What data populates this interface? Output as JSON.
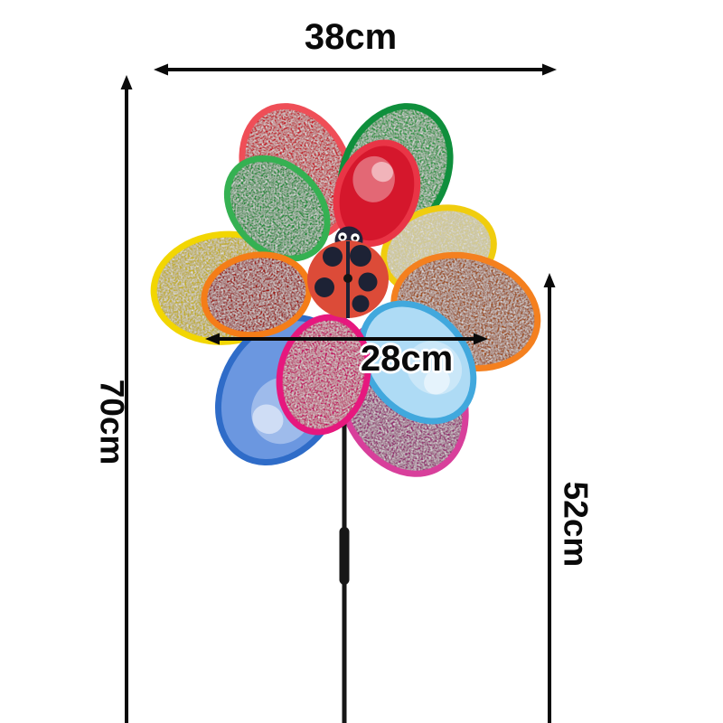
{
  "background_color": "#ffffff",
  "arrow_color": "#0a0a0a",
  "dimensions": {
    "total_width": "38cm",
    "total_height": "70cm",
    "stick_height": "52cm",
    "inner_wheel_diameter": "28cm"
  },
  "pinwheel": {
    "stick_color": "#171717",
    "back_petals": [
      {
        "name": "yellow-outer",
        "angle": -95,
        "length": 217,
        "rim": "#f2d602",
        "fill": "#dcc51e",
        "finish": "sparkle"
      },
      {
        "name": "red-outer",
        "angle": -25,
        "length": 208,
        "rim": "#ef4e57",
        "fill": "#dc1f2b",
        "finish": "sparkle"
      },
      {
        "name": "green-outer",
        "angle": 25,
        "length": 208,
        "rim": "#0f8f3c",
        "fill": "#2aa746",
        "finish": "sparkle"
      },
      {
        "name": "pale-yellow-inner",
        "angle": 74,
        "length": 172,
        "rim": "#f0cd0e",
        "fill": "#f1e6a0",
        "finish": "sparkle"
      },
      {
        "name": "orange-outer",
        "angle": 106,
        "length": 222,
        "rim": "#f4801f",
        "fill": "#b0561c",
        "finish": "sparkle"
      },
      {
        "name": "purple-outer",
        "angle": 155,
        "length": 238,
        "rim": "#d83f9b",
        "fill": "#a52b7e",
        "finish": "sparkle"
      },
      {
        "name": "blue-outer",
        "angle": -150,
        "length": 232,
        "rim": "#2f6cc8",
        "fill": "#6b97e0",
        "finish": "glossy"
      }
    ],
    "front_petals": [
      {
        "name": "green-inner",
        "angle": -45,
        "length": 174,
        "rim": "#35b152",
        "fill": "#1b9c3d",
        "finish": "sparkle"
      },
      {
        "name": "red-glossy-inner",
        "angle": 20,
        "length": 160,
        "rim": "#e93546",
        "fill": "#d5172c",
        "finish": "glossy"
      },
      {
        "name": "crimson-inner",
        "angle": -101,
        "length": 163,
        "rim": "#f47d18",
        "fill": "#ae1a14",
        "finish": "sparkle"
      },
      {
        "name": "light-blue-inner",
        "angle": 140,
        "length": 198,
        "rim": "#41a8dd",
        "fill": "#aedbf5",
        "finish": "glossy"
      },
      {
        "name": "magenta-inner",
        "angle": -167,
        "length": 178,
        "rim": "#e6187e",
        "fill": "#da0f6e",
        "finish": "sparkle"
      }
    ],
    "ladybug": {
      "body_color": "#dc4b38",
      "head_color": "#23233a",
      "eye_color": "#ffffff",
      "pupil_color": "#14141e",
      "spot_color": "#1d2235",
      "wing_line_color": "#1d2235",
      "pivot_color": "#151515",
      "spots": [
        [
          -17,
          -25,
          11
        ],
        [
          14,
          -26,
          12
        ],
        [
          -26,
          9,
          11
        ],
        [
          22,
          3,
          10.5
        ],
        [
          14,
          27,
          9.5
        ]
      ]
    }
  }
}
